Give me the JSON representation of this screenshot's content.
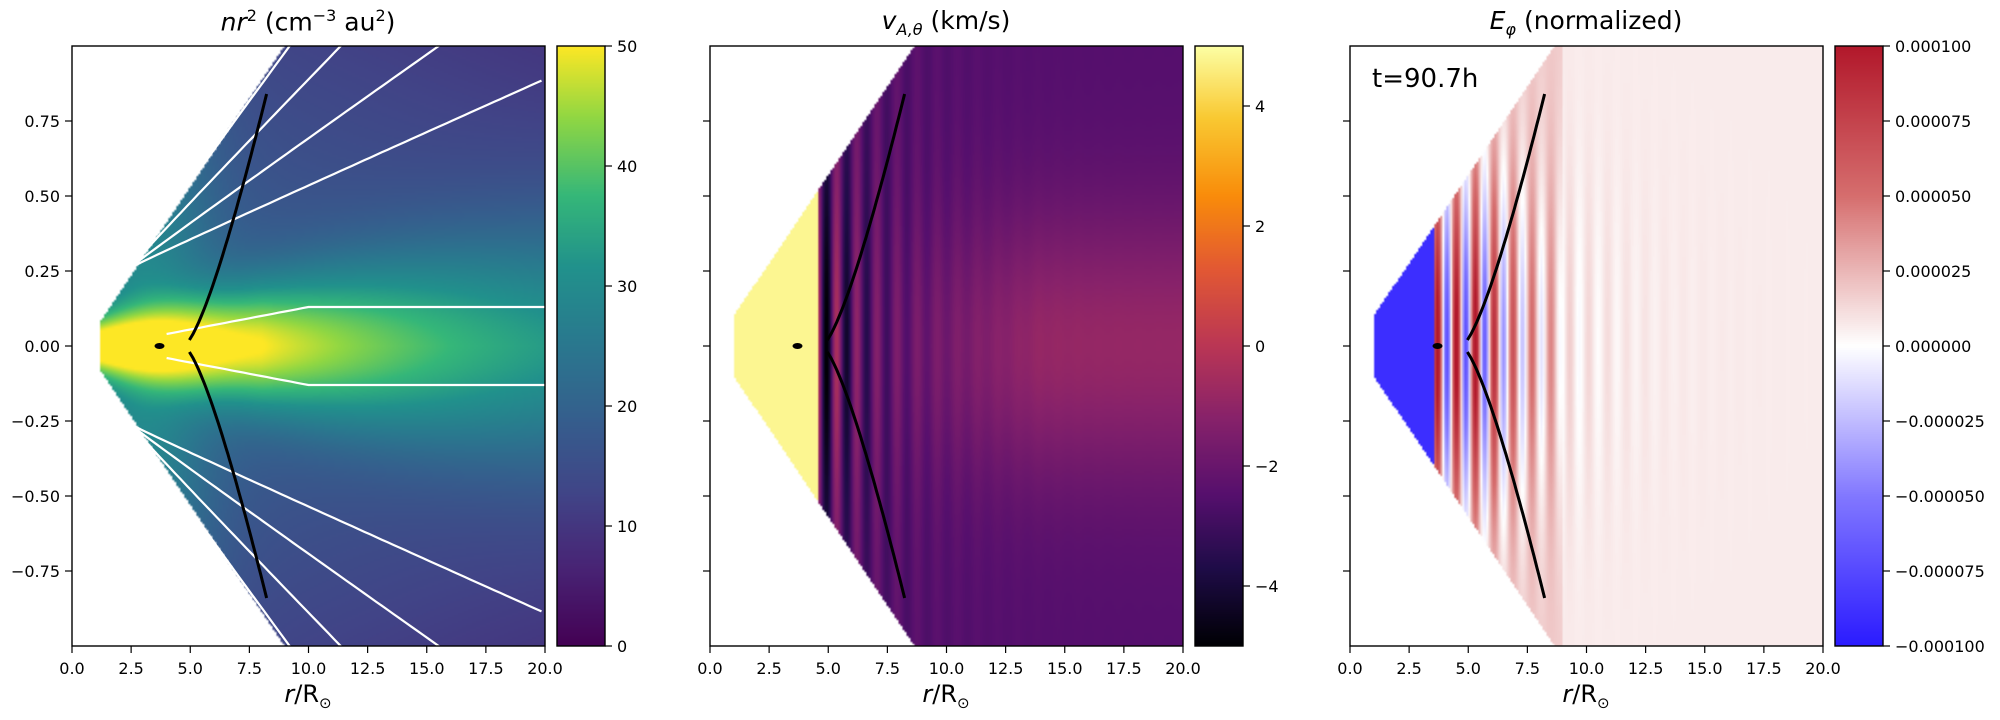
{
  "chart_data": [
    {
      "type": "heatmap",
      "title_main": "nr",
      "title_sup": "2",
      "title_rest": " (cm",
      "title_sup2": "−3",
      "title_rest2": " au",
      "title_sup3": "2",
      "title_end": ")",
      "xlabel_main": "r",
      "xlabel_rest": "/R",
      "xlabel_sub": "⊙",
      "xlim": [
        0,
        20
      ],
      "ylim": [
        -1,
        1
      ],
      "xticks": [
        "0.0",
        "2.5",
        "5.0",
        "7.5",
        "10.0",
        "12.5",
        "15.0",
        "17.5",
        "20.0"
      ],
      "yticks": [
        "0.75",
        "0.50",
        "0.25",
        "0.00",
        "−0.25",
        "−0.50",
        "−0.75"
      ],
      "ytick_values": [
        0.75,
        0.5,
        0.25,
        0,
        -0.25,
        -0.5,
        -0.75
      ],
      "colormap": "viridis",
      "clim": [
        0,
        50
      ],
      "cbar_ticks": [
        "0",
        "10",
        "20",
        "30",
        "40",
        "50"
      ],
      "cbar_tick_values": [
        0,
        10,
        20,
        30,
        40,
        50
      ]
    },
    {
      "type": "heatmap",
      "title_main": "v",
      "title_sub": "A,θ",
      "title_rest": " (km/s)",
      "xlabel_main": "r",
      "xlabel_rest": "/R",
      "xlabel_sub": "⊙",
      "xlim": [
        0,
        20
      ],
      "ylim": [
        -1,
        1
      ],
      "xticks": [
        "0.0",
        "2.5",
        "5.0",
        "7.5",
        "10.0",
        "12.5",
        "15.0",
        "17.5",
        "20.0"
      ],
      "colormap": "inferno",
      "clim": [
        -5,
        5
      ],
      "cbar_ticks": [
        "−4",
        "−2",
        "0",
        "2",
        "4"
      ],
      "cbar_tick_values": [
        -4,
        -2,
        0,
        2,
        4
      ]
    },
    {
      "type": "heatmap",
      "title_main": "E",
      "title_sub": "φ",
      "title_rest": " (normalized)",
      "xlabel_main": "r",
      "xlabel_rest": "/R",
      "xlabel_sub": "⊙",
      "annotation": "t=90.7h",
      "xlim": [
        0,
        20
      ],
      "ylim": [
        -1,
        1
      ],
      "xticks": [
        "0.0",
        "2.5",
        "5.0",
        "7.5",
        "10.0",
        "12.5",
        "15.0",
        "17.5",
        "20.0"
      ],
      "colormap": "bwr",
      "clim": [
        -0.0001,
        0.0001
      ],
      "cbar_ticks": [
        "0.000100",
        "0.000075",
        "0.000050",
        "0.000025",
        "0.000000",
        "−0.000025",
        "−0.000050",
        "−0.000075",
        "−0.000100"
      ],
      "cbar_tick_values": [
        0.0001,
        7.5e-05,
        5e-05,
        2.5e-05,
        0,
        -2.5e-05,
        -5e-05,
        -7.5e-05,
        -0.0001
      ]
    }
  ],
  "colors": {
    "viridis_low": "#440154",
    "viridis_high": "#fde725",
    "inferno_high": "#fcffa4",
    "bwr_pos": "#b2182b",
    "bwr_neg": "#2b1bff"
  }
}
